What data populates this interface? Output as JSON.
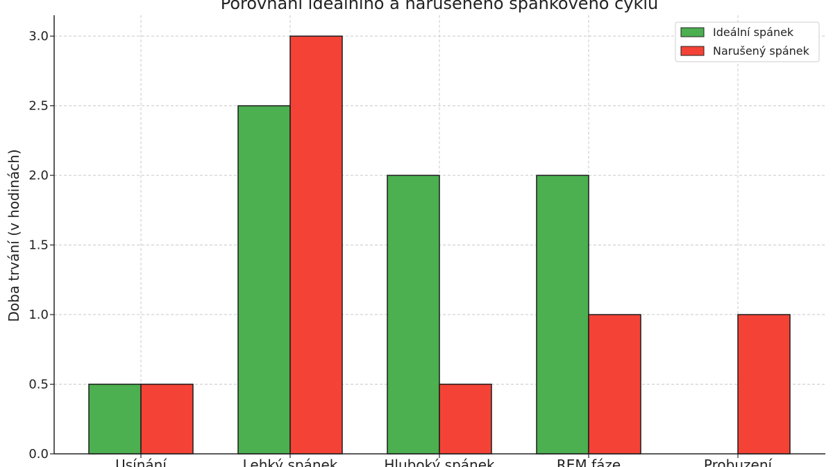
{
  "chart_data": {
    "type": "bar",
    "title": "Porovnání ideálního a narušeného spánkového cyklu",
    "xlabel": "",
    "ylabel": "Doba trvání (v hodinách)",
    "categories": [
      "Usínání",
      "Lehký spánek",
      "Hluboký spánek",
      "REM fáze",
      "Probuzení"
    ],
    "series": [
      {
        "name": "Ideální spánek",
        "color": "#4caf50",
        "values": [
          0.5,
          2.5,
          2.0,
          2.0,
          0.0
        ]
      },
      {
        "name": "Narušený spánek",
        "color": "#f44336",
        "values": [
          0.5,
          3.0,
          0.5,
          1.0,
          1.0
        ]
      }
    ],
    "ylim": [
      0,
      3.15
    ],
    "yticks": [
      "0.0",
      "0.5",
      "1.0",
      "1.5",
      "2.0",
      "2.5",
      "3.0"
    ],
    "grid": true,
    "legend_position": "top-right"
  }
}
